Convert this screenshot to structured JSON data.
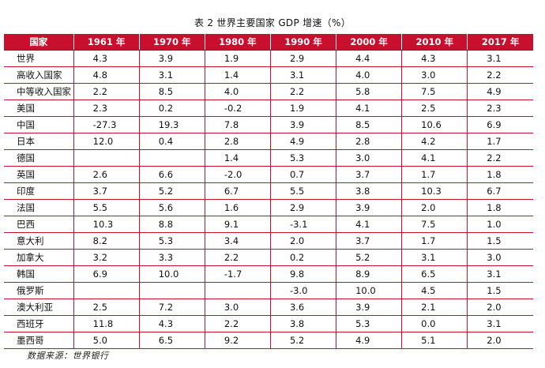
{
  "caption": "表 2  世界主要国家 GDP 增速（%）",
  "table": {
    "headers": [
      "国家",
      "1961 年",
      "1970 年",
      "1980 年",
      "1990 年",
      "2000 年",
      "2010 年",
      "2017 年"
    ],
    "rows": [
      [
        "世界",
        "4.3",
        "3.9",
        "1.9",
        "2.9",
        "4.4",
        "4.3",
        "3.1"
      ],
      [
        "高收入国家",
        "4.8",
        "3.1",
        "1.4",
        "3.1",
        "4.0",
        "3.0",
        "2.2"
      ],
      [
        "中等收入国家",
        "2.2",
        "8.5",
        "4.0",
        "2.2",
        "5.8",
        "7.5",
        "4.9"
      ],
      [
        "美国",
        "2.3",
        "0.2",
        "-0.2",
        "1.9",
        "4.1",
        "2.5",
        "2.3"
      ],
      [
        "中国",
        "-27.3",
        "19.3",
        "7.8",
        "3.9",
        "8.5",
        "10.6",
        "6.9"
      ],
      [
        "日本",
        "12.0",
        "0.4",
        "2.8",
        "4.9",
        "2.8",
        "4.2",
        "1.7"
      ],
      [
        "德国",
        "",
        "",
        "1.4",
        "5.3",
        "3.0",
        "4.1",
        "2.2"
      ],
      [
        "英国",
        "2.6",
        "6.6",
        "-2.0",
        "0.7",
        "3.7",
        "1.7",
        "1.8"
      ],
      [
        "印度",
        "3.7",
        "5.2",
        "6.7",
        "5.5",
        "3.8",
        "10.3",
        "6.7"
      ],
      [
        "法国",
        "5.5",
        "5.6",
        "1.6",
        "2.9",
        "3.9",
        "2.0",
        "1.8"
      ],
      [
        "巴西",
        "10.3",
        "8.8",
        "9.1",
        "-3.1",
        "4.1",
        "7.5",
        "1.0"
      ],
      [
        "意大利",
        "8.2",
        "5.3",
        "3.4",
        "2.0",
        "3.7",
        "1.7",
        "1.5"
      ],
      [
        "加拿大",
        "3.2",
        "3.3",
        "2.2",
        "0.2",
        "5.2",
        "3.1",
        "3.0"
      ],
      [
        "韩国",
        "6.9",
        "10.0",
        "-1.7",
        "9.8",
        "8.9",
        "6.5",
        "3.1"
      ],
      [
        "俄罗斯",
        "",
        "",
        "",
        "-3.0",
        "10.0",
        "4.5",
        "1.5"
      ],
      [
        "澳大利亚",
        "2.5",
        "7.2",
        "3.0",
        "3.6",
        "3.9",
        "2.1",
        "2.0"
      ],
      [
        "西班牙",
        "11.8",
        "4.3",
        "2.2",
        "3.8",
        "5.3",
        "0.0",
        "3.1"
      ],
      [
        "墨西哥",
        "5.0",
        "6.5",
        "9.2",
        "5.2",
        "4.9",
        "5.1",
        "2.0"
      ]
    ]
  },
  "source": "数据来源：世界银行",
  "colors": {
    "header_bg": "#c8102e",
    "header_text": "#ffffff",
    "rule": "#c8102e"
  }
}
